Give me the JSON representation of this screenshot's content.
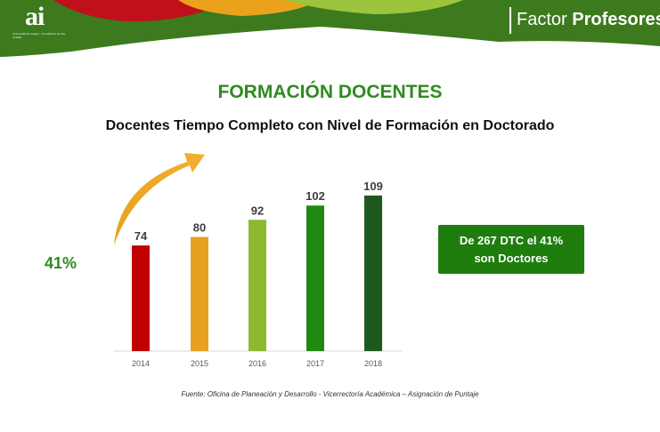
{
  "header": {
    "logo_text": "ai",
    "logo_subtext": "Universidad de Ibagué · Acreditación de Alta Calidad",
    "title_prefix": "Factor",
    "title_bold": "Profesores"
  },
  "section_title": "FORMACIÓN DOCENTES",
  "growth_label": "41%",
  "callout": {
    "line1": "De 267 DTC el 41%",
    "line2": "son Doctores"
  },
  "source": "Fuente: Oficina de Planeación y Desarrollo - Vicerrectoría Académica – Asignación de Puntaje",
  "colors": {
    "red": "#c00000",
    "orange": "#e8a020",
    "light_green": "#8db832",
    "green": "#1f8a12",
    "dark_green": "#1e5a1e",
    "title_green": "#2e8b1f"
  },
  "chart_data": {
    "type": "bar",
    "title": "Docentes Tiempo Completo con Nivel de Formación en Doctorado",
    "categories": [
      "2014",
      "2015",
      "2016",
      "2017",
      "2018"
    ],
    "values": [
      74,
      80,
      92,
      102,
      109
    ],
    "bar_colors": [
      "#c00000",
      "#e8a020",
      "#8db832",
      "#1f8a12",
      "#1e5a1e"
    ],
    "ylim": [
      0,
      109
    ],
    "xlabel": "",
    "ylabel": "",
    "grid": false,
    "legend": "none",
    "data_labels": true
  }
}
